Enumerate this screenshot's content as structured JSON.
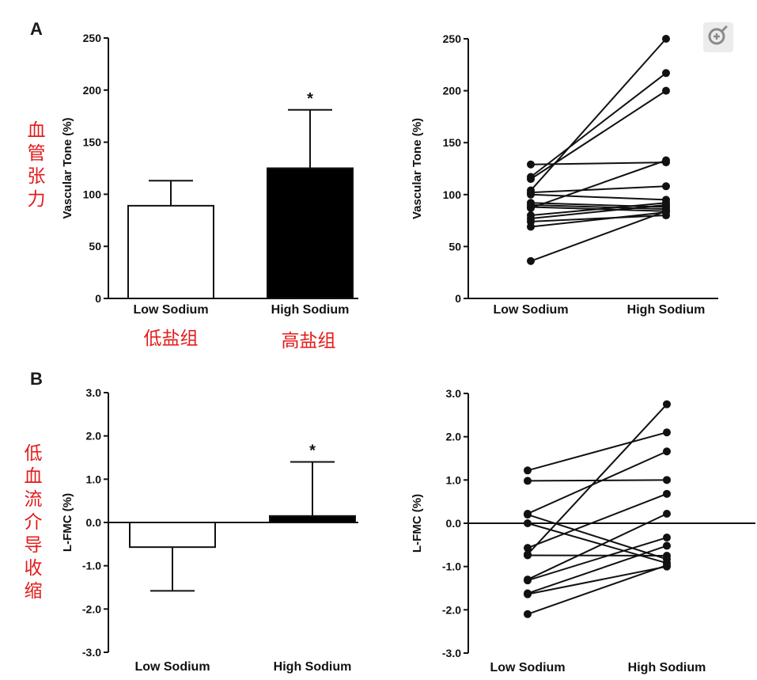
{
  "annotations": {
    "vascular_tone_cn": "血管张力",
    "low_salt_cn": "低盐组",
    "high_salt_cn": "高盐组",
    "lfmc_cn": "低血流介导收缩"
  },
  "colors": {
    "annotation": "#e21b1b",
    "ink": "#111111",
    "background": "#ffffff"
  },
  "zoom_icon": "zoom-in-icon",
  "chart_data": [
    {
      "panel": "A",
      "type": "bar",
      "categories": [
        "Low  Sodium",
        "High Sodium"
      ],
      "values": [
        89,
        125
      ],
      "error_upper": [
        113,
        181
      ],
      "bar_colors": [
        "#ffffff",
        "#000000"
      ],
      "significance": [
        "",
        "*"
      ],
      "ylabel": "Vascular Tone (%)",
      "ylim": [
        0,
        250
      ],
      "yticks": [
        "0",
        "50",
        "100",
        "150",
        "200",
        "250"
      ]
    },
    {
      "type": "line",
      "categories": [
        "Low Sodium",
        "High Sodium"
      ],
      "series": [
        {
          "values": [
            129,
            131
          ]
        },
        {
          "values": [
            117,
            217
          ]
        },
        {
          "values": [
            115,
            200
          ]
        },
        {
          "values": [
            104,
            250
          ]
        },
        {
          "values": [
            102,
            108
          ]
        },
        {
          "values": [
            100,
            95
          ]
        },
        {
          "values": [
            92,
            88
          ]
        },
        {
          "values": [
            90,
            86
          ]
        },
        {
          "values": [
            88,
            84
          ]
        },
        {
          "values": [
            87,
            133
          ]
        },
        {
          "values": [
            80,
            92
          ]
        },
        {
          "values": [
            77,
            90
          ]
        },
        {
          "values": [
            74,
            80
          ]
        },
        {
          "values": [
            69,
            83
          ]
        },
        {
          "values": [
            36,
            84
          ]
        }
      ],
      "ylabel": "Vascular Tone (%)",
      "ylim": [
        0,
        250
      ],
      "yticks": [
        "0",
        "50",
        "100",
        "150",
        "200",
        "250"
      ]
    },
    {
      "panel": "B",
      "type": "bar",
      "categories": [
        "Low Sodium",
        "High Sodium"
      ],
      "values": [
        -0.57,
        0.15
      ],
      "error_ends": [
        -1.58,
        1.4
      ],
      "bar_colors": [
        "#ffffff",
        "#000000"
      ],
      "significance": [
        "",
        "*"
      ],
      "ylabel": "L-FMC (%)",
      "ylim": [
        -3,
        3
      ],
      "yticks": [
        "3.0",
        "2.0",
        "1.0",
        "0.0",
        "-1.0",
        "-2.0",
        "-3.0"
      ]
    },
    {
      "type": "line",
      "categories": [
        "Low Sodium",
        "High Sodium"
      ],
      "series": [
        {
          "values": [
            1.22,
            2.1
          ]
        },
        {
          "values": [
            0.98,
            1.0
          ]
        },
        {
          "values": [
            0.22,
            1.66
          ]
        },
        {
          "values": [
            0.2,
            -0.83
          ]
        },
        {
          "values": [
            0.0,
            -0.92
          ]
        },
        {
          "values": [
            -0.57,
            0.68
          ]
        },
        {
          "values": [
            -0.72,
            2.75
          ]
        },
        {
          "values": [
            -0.74,
            -0.75
          ]
        },
        {
          "values": [
            -1.3,
            0.22
          ]
        },
        {
          "values": [
            -1.32,
            -0.33
          ]
        },
        {
          "values": [
            -1.62,
            -0.52
          ]
        },
        {
          "values": [
            -1.64,
            -1.0
          ]
        },
        {
          "values": [
            -2.1,
            -0.97
          ]
        }
      ],
      "ylabel": "L-FMC (%)",
      "ylim": [
        -3,
        3
      ],
      "yticks": [
        "3.0",
        "2.0",
        "1.0",
        "0.0",
        "-1.0",
        "-2.0",
        "-3.0"
      ]
    }
  ]
}
